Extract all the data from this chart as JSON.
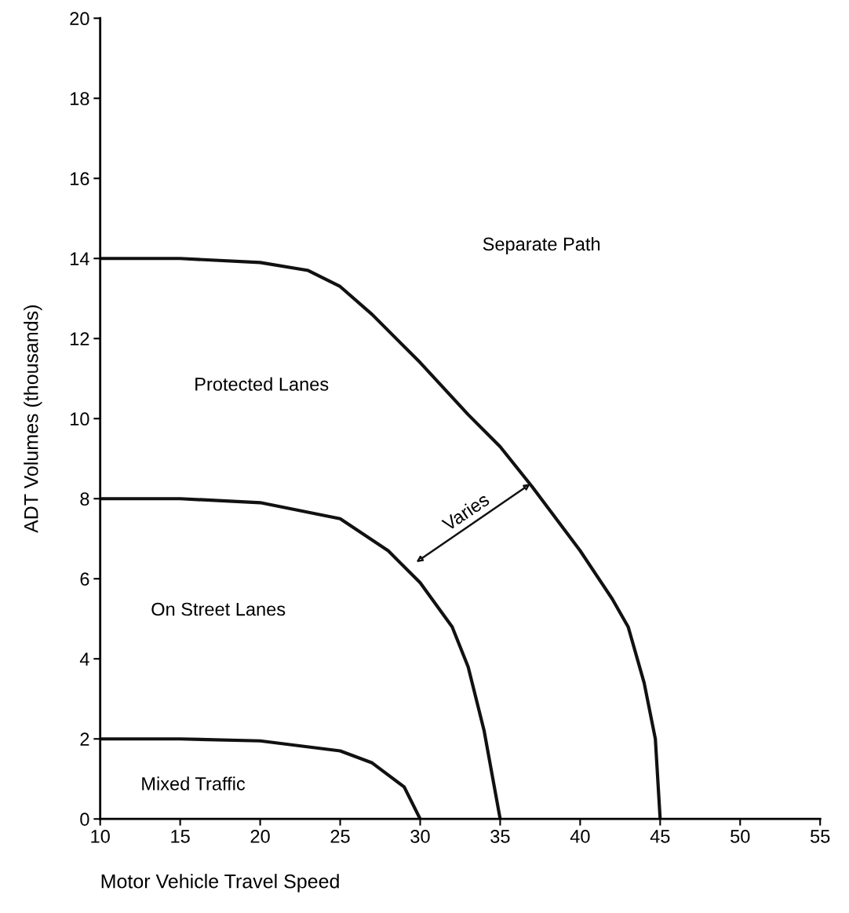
{
  "chart_data": {
    "type": "line",
    "xlabel": "Motor Vehicle Travel Speed",
    "ylabel": "ADT Volumes (thousands)",
    "series": [
      {
        "color": "#111111",
        "x": [
          10,
          15,
          20,
          23,
          25,
          27,
          30,
          33,
          35,
          37,
          40,
          42,
          43,
          44,
          44.7,
          45
        ],
        "values": [
          14,
          14,
          13.9,
          13.7,
          13.3,
          12.6,
          11.4,
          10.1,
          9.3,
          8.3,
          6.7,
          5.5,
          4.8,
          3.4,
          2,
          0
        ]
      },
      {
        "color": "#111111",
        "x": [
          10,
          15,
          20,
          25,
          28,
          30,
          32,
          33,
          34,
          35
        ],
        "values": [
          8,
          8,
          7.9,
          7.5,
          6.7,
          5.9,
          4.8,
          3.8,
          2.2,
          0
        ]
      },
      {
        "color": "#111111",
        "x": [
          10,
          15,
          20,
          25,
          27,
          29,
          30
        ],
        "values": [
          2,
          2,
          1.95,
          1.7,
          1.4,
          0.8,
          0
        ]
      }
    ],
    "xlim": [
      10,
      55
    ],
    "xticks": [
      10,
      15,
      20,
      25,
      30,
      35,
      40,
      45,
      50,
      55
    ],
    "ylim": [
      0,
      20
    ],
    "yticks": [
      0,
      2,
      4,
      6,
      8,
      10,
      12,
      14,
      16,
      18,
      20
    ],
    "grid": false,
    "legend": false,
    "marker": "none",
    "line_style": "solid",
    "annotations": [
      "Separate Path",
      "Protected Lanes",
      "On Street Lanes",
      "Mixed Traffic",
      {
        "text": "Varies",
        "x": 37,
        "y": 8.4
      }
    ]
  }
}
